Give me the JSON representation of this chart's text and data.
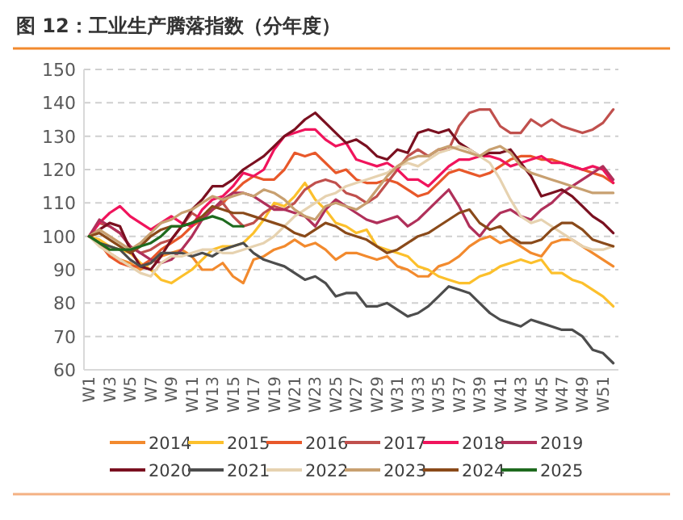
{
  "chart_data": {
    "type": "line",
    "title": "图 12：工业生产腾落指数（分年度）",
    "categories": [
      "W1",
      null,
      "W3",
      null,
      "W5",
      null,
      "W7",
      null,
      "W9",
      null,
      "W11",
      null,
      "W13",
      null,
      "W15",
      null,
      "W17",
      null,
      "W19",
      null,
      "W21",
      null,
      "W23",
      null,
      "W25",
      null,
      "W27",
      null,
      "W29",
      null,
      "W31",
      null,
      "W33",
      null,
      "W35",
      null,
      "W37",
      null,
      "W39",
      null,
      "W41",
      null,
      "W43",
      null,
      "W45",
      null,
      "W47",
      null,
      "W49",
      null,
      "W51",
      null
    ],
    "ylim": [
      60,
      150
    ],
    "yticks": [
      60,
      70,
      80,
      90,
      100,
      110,
      120,
      130,
      140,
      150
    ],
    "grid": "y",
    "legend": "bottom",
    "series": [
      {
        "name": "2014",
        "color": "#f28a2e",
        "values": [
          100,
          98,
          95,
          93,
          92,
          90,
          92,
          94,
          95,
          96,
          94,
          90,
          90,
          92,
          88,
          86,
          93,
          94,
          96,
          97,
          99,
          97,
          98,
          96,
          93,
          95,
          95,
          94,
          93,
          94,
          91,
          90,
          88,
          88,
          91,
          92,
          94,
          97,
          99,
          100,
          98,
          99,
          97,
          95,
          94,
          98,
          99,
          99,
          97,
          95,
          93,
          91
        ]
      },
      {
        "name": "2015",
        "color": "#fcc02c",
        "values": [
          100,
          99,
          97,
          96,
          95,
          92,
          90,
          87,
          86,
          88,
          90,
          93,
          96,
          97,
          97,
          98,
          101,
          105,
          110,
          109,
          112,
          116,
          111,
          108,
          104,
          103,
          101,
          102,
          97,
          96,
          95,
          94,
          91,
          90,
          88,
          87,
          86,
          86,
          88,
          89,
          91,
          92,
          93,
          92,
          93,
          89,
          89,
          87,
          86,
          84,
          82,
          79
        ]
      },
      {
        "name": "2016",
        "color": "#e8582a",
        "values": [
          100,
          98,
          94,
          92,
          91,
          91,
          93,
          96,
          98,
          100,
          103,
          105,
          108,
          110,
          113,
          116,
          118,
          117,
          117,
          120,
          125,
          124,
          125,
          122,
          119,
          120,
          117,
          116,
          116,
          117,
          116,
          114,
          112,
          113,
          116,
          119,
          120,
          119,
          118,
          119,
          121,
          123,
          124,
          124,
          123,
          123,
          122,
          121,
          120,
          119,
          118,
          116
        ]
      },
      {
        "name": "2017",
        "color": "#c0504d",
        "values": [
          100,
          104,
          103,
          101,
          97,
          95,
          96,
          98,
          99,
          103,
          107,
          105,
          108,
          110,
          106,
          103,
          104,
          107,
          109,
          108,
          110,
          114,
          116,
          117,
          116,
          113,
          112,
          110,
          112,
          116,
          120,
          124,
          126,
          124,
          126,
          126,
          133,
          137,
          138,
          138,
          133,
          131,
          131,
          135,
          133,
          135,
          133,
          132,
          131,
          132,
          134,
          138
        ]
      },
      {
        "name": "2018",
        "color": "#f0145c",
        "values": [
          100,
          104,
          107,
          109,
          106,
          104,
          102,
          104,
          106,
          104,
          103,
          108,
          111,
          112,
          115,
          119,
          118,
          120,
          126,
          130,
          131,
          132,
          132,
          129,
          127,
          128,
          123,
          122,
          121,
          122,
          120,
          117,
          117,
          115,
          118,
          121,
          123,
          123,
          124,
          124,
          123,
          121,
          122,
          123,
          124,
          122,
          122,
          121,
          120,
          121,
          120,
          116
        ]
      },
      {
        "name": "2019",
        "color": "#b0305a",
        "values": [
          100,
          105,
          103,
          101,
          97,
          95,
          93,
          92,
          93,
          96,
          100,
          105,
          108,
          111,
          113,
          113,
          112,
          110,
          108,
          108,
          107,
          106,
          103,
          108,
          111,
          109,
          107,
          105,
          104,
          105,
          106,
          103,
          105,
          108,
          111,
          114,
          109,
          103,
          100,
          104,
          107,
          108,
          106,
          105,
          108,
          110,
          113,
          115,
          117,
          119,
          121,
          117
        ]
      },
      {
        "name": "2020",
        "color": "#7a1020",
        "values": [
          100,
          102,
          104,
          103,
          96,
          91,
          90,
          94,
          99,
          103,
          108,
          111,
          115,
          115,
          117,
          120,
          122,
          124,
          127,
          130,
          132,
          135,
          137,
          134,
          131,
          128,
          129,
          127,
          124,
          123,
          126,
          125,
          131,
          132,
          131,
          132,
          128,
          126,
          124,
          125,
          125,
          126,
          122,
          118,
          112,
          113,
          114,
          112,
          109,
          106,
          104,
          101
        ]
      },
      {
        "name": "2021",
        "color": "#4d4d4d",
        "values": [
          100,
          98,
          97,
          96,
          93,
          91,
          92,
          95,
          95,
          95,
          94,
          95,
          94,
          96,
          97,
          98,
          95,
          93,
          92,
          91,
          89,
          87,
          88,
          86,
          82,
          83,
          83,
          79,
          79,
          80,
          78,
          76,
          77,
          79,
          82,
          85,
          84,
          83,
          80,
          77,
          75,
          74,
          73,
          75,
          74,
          73,
          72,
          72,
          70,
          66,
          65,
          62
        ]
      },
      {
        "name": "2022",
        "color": "#e6d2b0",
        "values": [
          100,
          97,
          95,
          93,
          91,
          89,
          88,
          92,
          94,
          94,
          95,
          96,
          96,
          95,
          95,
          96,
          97,
          98,
          100,
          103,
          106,
          108,
          110,
          112,
          113,
          115,
          116,
          117,
          118,
          119,
          121,
          122,
          121,
          123,
          125,
          126,
          127,
          126,
          124,
          122,
          117,
          111,
          106,
          104,
          105,
          103,
          101,
          99,
          97,
          96,
          96,
          97
        ]
      },
      {
        "name": "2023",
        "color": "#c8a070",
        "values": [
          100,
          102,
          100,
          98,
          96,
          98,
          101,
          104,
          105,
          107,
          108,
          110,
          112,
          111,
          112,
          113,
          112,
          114,
          113,
          111,
          108,
          106,
          105,
          109,
          110,
          109,
          108,
          110,
          114,
          118,
          121,
          123,
          124,
          124,
          126,
          127,
          126,
          125,
          124,
          126,
          127,
          125,
          121,
          119,
          118,
          117,
          116,
          115,
          114,
          113,
          113,
          113
        ]
      },
      {
        "name": "2024",
        "color": "#8a4a1a",
        "values": [
          100,
          101,
          99,
          97,
          95,
          97,
          100,
          102,
          103,
          103,
          104,
          106,
          109,
          108,
          107,
          107,
          106,
          105,
          104,
          103,
          101,
          100,
          102,
          104,
          103,
          101,
          100,
          99,
          97,
          95,
          96,
          98,
          100,
          101,
          103,
          105,
          107,
          108,
          104,
          102,
          103,
          100,
          98,
          98,
          99,
          102,
          104,
          104,
          102,
          99,
          98,
          97
        ]
      },
      {
        "name": "2025",
        "color": "#1e6a1e",
        "values": [
          100,
          98,
          96,
          96,
          96,
          97,
          98,
          100,
          103,
          103,
          104,
          105,
          106,
          105,
          103,
          103,
          null,
          null,
          null,
          null,
          null,
          null,
          null,
          null,
          null,
          null,
          null,
          null,
          null,
          null,
          null,
          null,
          null,
          null,
          null,
          null,
          null,
          null,
          null,
          null,
          null,
          null,
          null,
          null,
          null,
          null,
          null,
          null,
          null,
          null,
          null,
          null
        ]
      }
    ]
  }
}
